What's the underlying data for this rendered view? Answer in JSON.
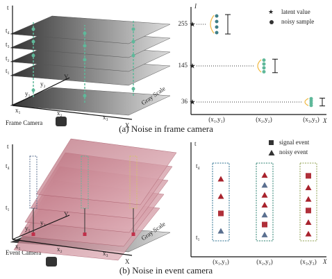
{
  "panel_a": {
    "caption": "(a) Noise in frame camera",
    "camera_label": "Frame Camera",
    "diagram_labels": [
      "t",
      "t₄",
      "t₃",
      "t₂",
      "t₁",
      "y₁",
      "y₂",
      "Y",
      "x₁",
      "x₂",
      "x₃",
      "X",
      "Gray Scale"
    ],
    "chart": {
      "y_axis_label": "I",
      "x_axis_label": "X",
      "yticks": [
        "255",
        "145",
        "36"
      ],
      "categories": [
        "(x₁,y₁)",
        "(x₂,y₂)",
        "(x₃,y₃)"
      ],
      "legend": [
        "latent value",
        "noisy sample"
      ]
    }
  },
  "panel_b": {
    "caption": "(b) Noise in event camera",
    "camera_label": "Event Camera",
    "diagram_labels": [
      "t",
      "t₄",
      "t₁",
      "y₁",
      "y₂",
      "Y",
      "x₁",
      "x₂",
      "x₃",
      "X",
      "Gray Scale"
    ],
    "chart": {
      "y_axis_label": "t",
      "x_axis_label": "X",
      "yticks": [
        "t₄",
        "t₁"
      ],
      "categories": [
        "(x₁,y₁)",
        "(x₂,y₂)",
        "(x₃,y₃)"
      ],
      "legend": [
        "signal event",
        "noisy event"
      ]
    }
  }
}
